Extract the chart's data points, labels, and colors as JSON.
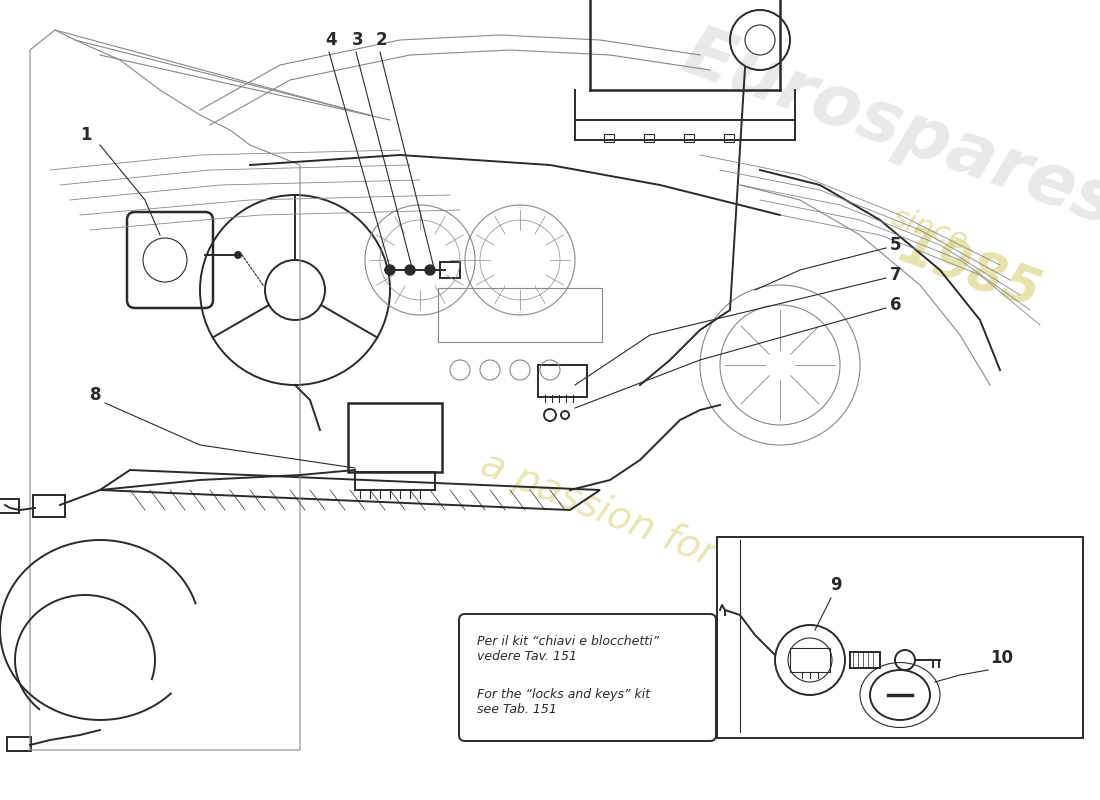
{
  "background_color": "#ffffff",
  "line_color": "#2a2a2a",
  "light_line_color": "#888888",
  "watermark_color_yellow": "#d4cc6a",
  "watermark_color_gray": "#c0c0c0",
  "note_text_it": "Per il kit “chiavi e blocchetti”\nvedere Tav. 151",
  "note_text_en": "For the “locks and keys” kit\nsee Tab. 151",
  "figsize": [
    11.0,
    8.0
  ],
  "dpi": 100,
  "xlim": [
    0,
    1100
  ],
  "ylim": [
    0,
    800
  ]
}
